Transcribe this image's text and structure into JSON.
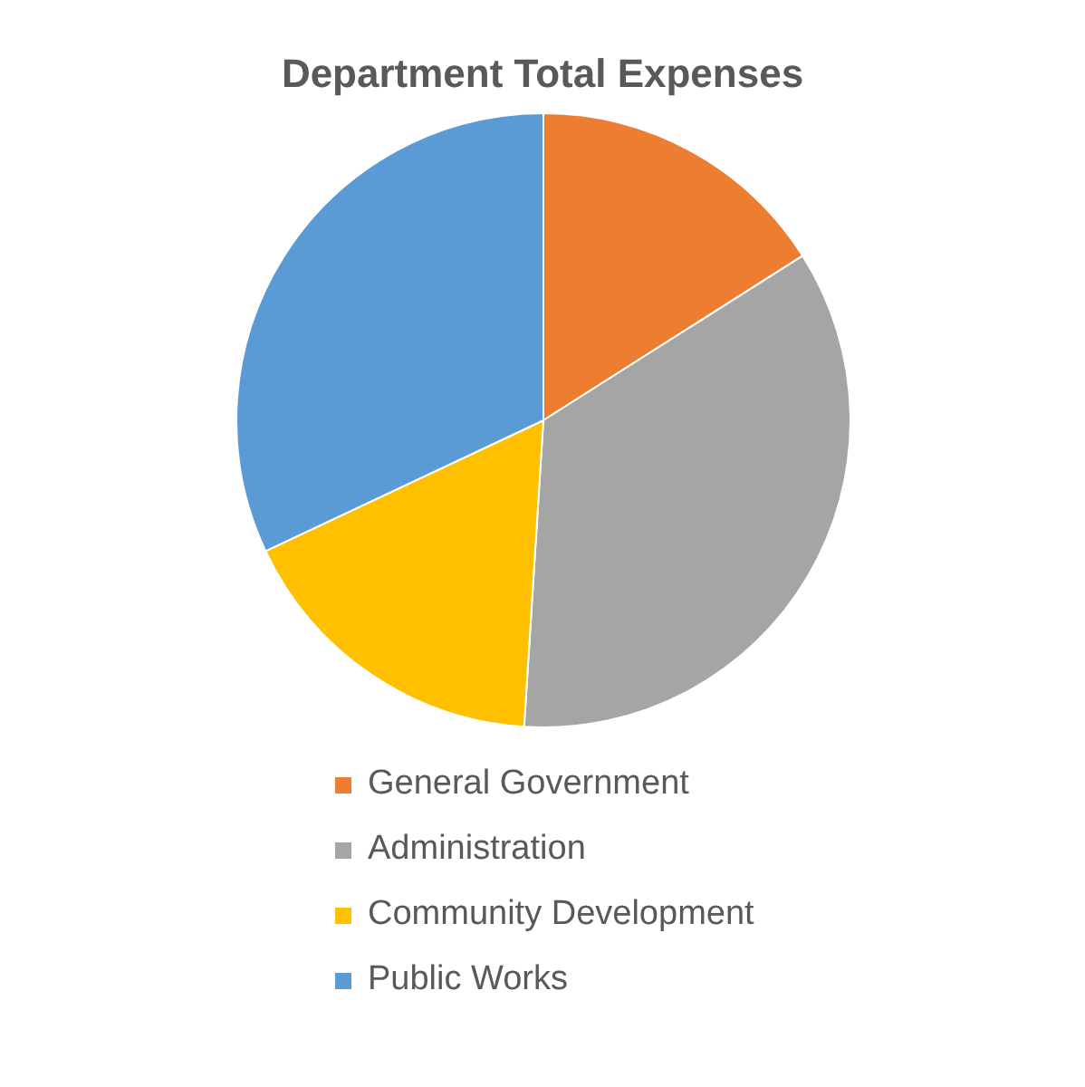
{
  "chart_data": {
    "type": "pie",
    "title": "Department Total Expenses",
    "categories": [
      "General Government",
      "Administration",
      "Community Development",
      "Public Works"
    ],
    "values": [
      16,
      35,
      17,
      32
    ],
    "colors": [
      "#ed7d31",
      "#a5a5a5",
      "#ffc000",
      "#5b9bd5"
    ],
    "legend": "bottom"
  }
}
